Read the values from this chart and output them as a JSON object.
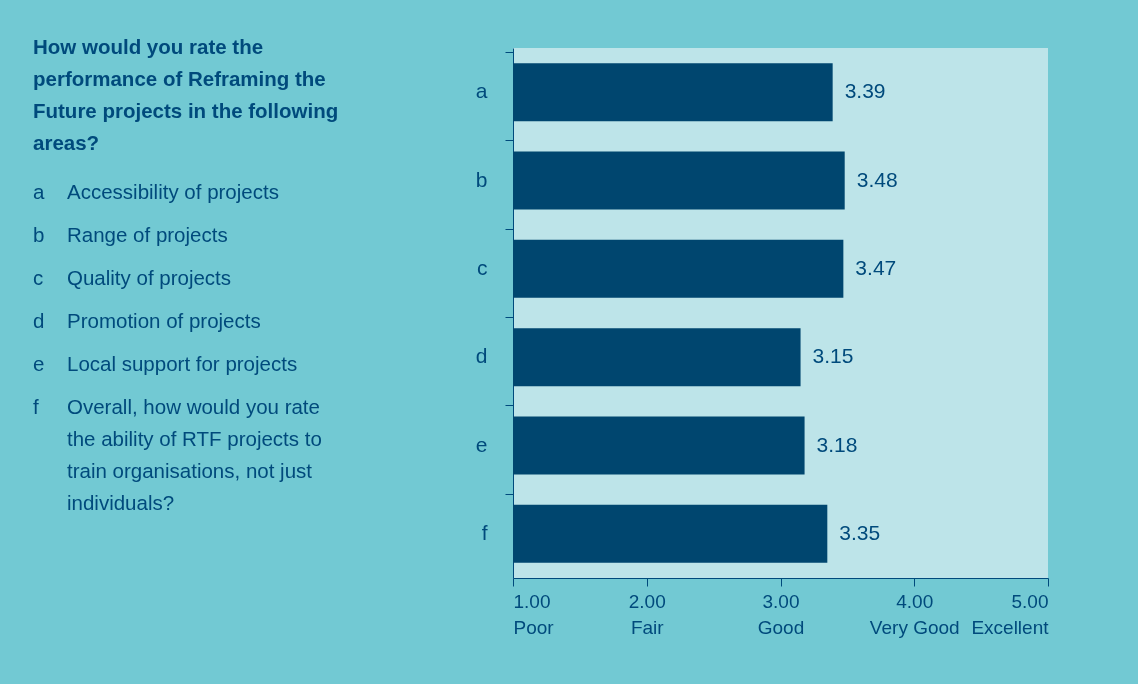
{
  "chart_data": {
    "type": "bar",
    "orientation": "horizontal",
    "title": "How would you rate the performance of Reframing the Future projects in the following areas?",
    "categories": [
      "a",
      "b",
      "c",
      "d",
      "e",
      "f"
    ],
    "values": [
      3.39,
      3.48,
      3.47,
      3.15,
      3.18,
      3.35
    ],
    "color": "#00466f",
    "xlim": [
      1,
      5
    ],
    "xticks": [
      {
        "value": 1,
        "label": "1.00\nPoor"
      },
      {
        "value": 2,
        "label": "2.00\nFair"
      },
      {
        "value": 3,
        "label": "3.00\nGood"
      },
      {
        "value": 4,
        "label": "4.00\nVery Good"
      },
      {
        "value": 5,
        "label": "5.00\nExcellent"
      }
    ],
    "data_labels": true,
    "grid": false,
    "legend": false,
    "annotations": [
      "Accessibility of projects",
      "Range of projects",
      "Quality of projects",
      "Promotion of projects",
      "Local support for projects",
      "Overall, how would you rate the ability of RTF projects to train organisations, not just individuals?"
    ]
  }
}
